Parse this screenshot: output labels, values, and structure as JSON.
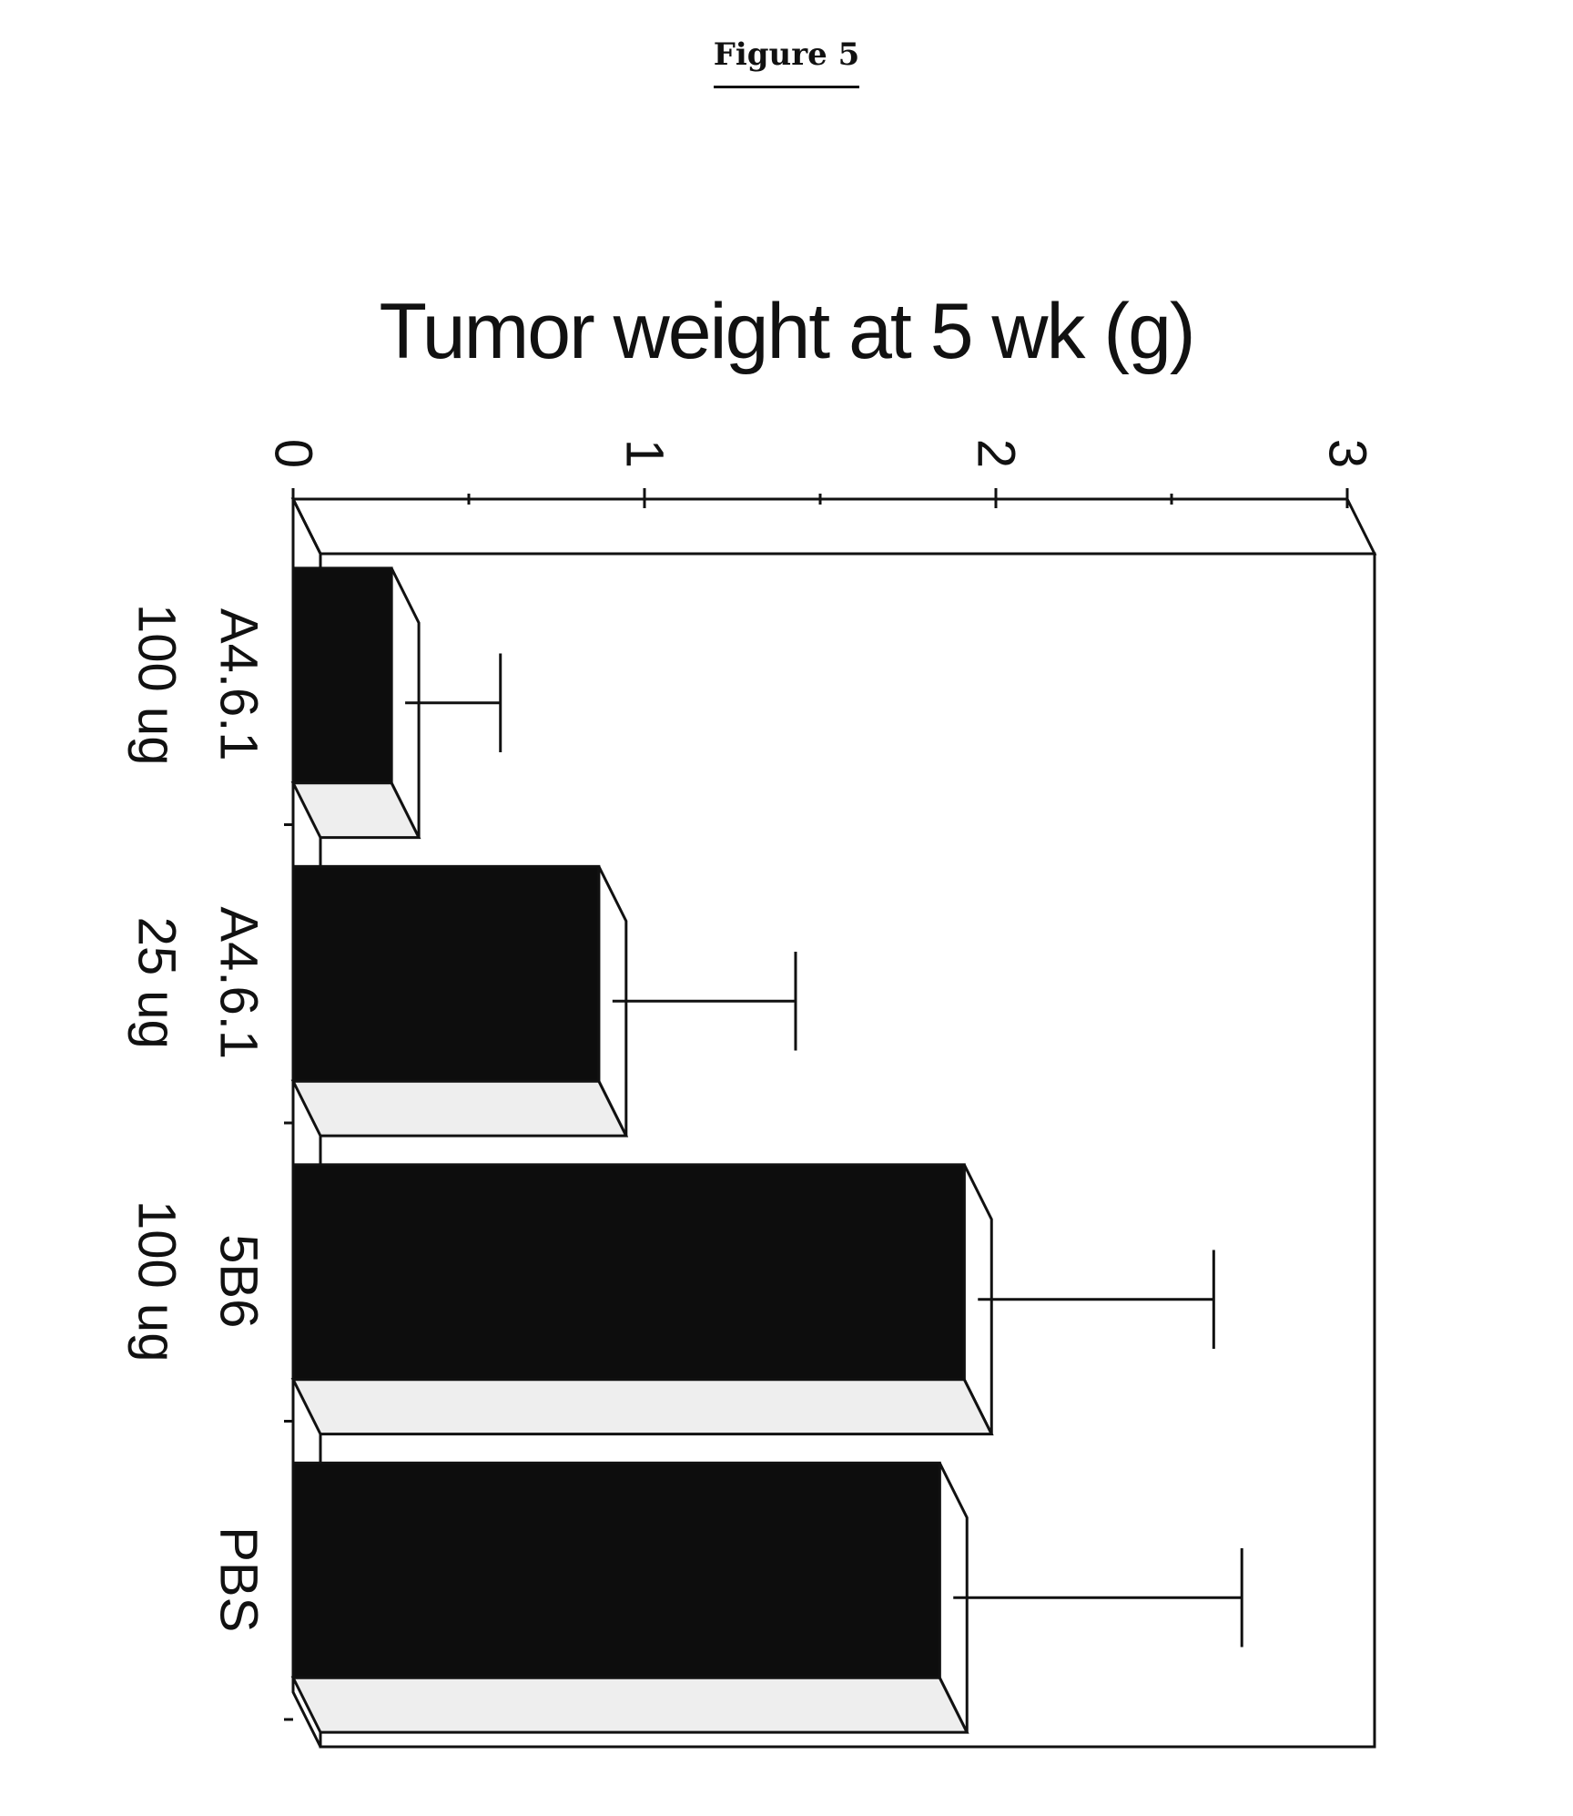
{
  "figure_label": "Figure 5",
  "chart_data": {
    "type": "bar",
    "orientation": "horizontal-3d",
    "title": "Tumor weight at 5 wk (g)",
    "xlabel": "",
    "ylabel": "",
    "xlim": [
      0,
      3
    ],
    "ticks": [
      "0",
      "1",
      "2",
      "3"
    ],
    "categories": [
      {
        "line1": "A4.6.1",
        "line2": "100 ug"
      },
      {
        "line1": "A4.6.1",
        "line2": "25 ug"
      },
      {
        "line1": "5B6",
        "line2": "100 ug"
      },
      {
        "line1": "PBS",
        "line2": ""
      }
    ],
    "values": [
      0.28,
      0.87,
      1.91,
      1.84
    ],
    "error_upper": [
      0.59,
      1.43,
      2.62,
      2.7
    ],
    "colors": {
      "bar": "#0d0d0d",
      "bar_bottom": "#eeeeee",
      "frame": "#111111",
      "background": "#ffffff"
    }
  }
}
